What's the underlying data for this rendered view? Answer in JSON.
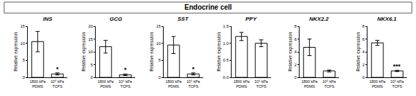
{
  "header": "Endocrine cell",
  "chart_data": [
    {
      "type": "bar",
      "title": "INS",
      "categories": [
        "1800 kPa PDMS",
        "10⁶ kPa TCPS"
      ],
      "values": [
        10.5,
        1.0
      ],
      "errors": [
        3.0,
        0.3
      ],
      "ylabel": "Relative expression",
      "ylim": [
        0,
        15
      ],
      "yticks": [
        0,
        5,
        10,
        15
      ],
      "color": "#ffffff",
      "annotations": [
        {
          "category": "10⁶ kPa TCPS",
          "text": "*"
        }
      ]
    },
    {
      "type": "bar",
      "title": "GCG",
      "categories": [
        "1800 kPa PDMS",
        "10⁶ kPa TCPS"
      ],
      "values": [
        12.0,
        1.0
      ],
      "errors": [
        2.5,
        0.3
      ],
      "ylabel": "Relative expression",
      "ylim": [
        0,
        20
      ],
      "yticks": [
        0,
        5,
        10,
        15,
        20
      ],
      "color": "#ffffff",
      "annotations": [
        {
          "category": "10⁶ kPa TCPS",
          "text": "*"
        }
      ]
    },
    {
      "type": "bar",
      "title": "SST",
      "categories": [
        "1800 kPa PDMS",
        "10⁶ kPa TCPS"
      ],
      "values": [
        9.5,
        1.0
      ],
      "errors": [
        2.5,
        0.3
      ],
      "ylabel": "Relative expression",
      "ylim": [
        0,
        15
      ],
      "yticks": [
        0,
        5,
        10,
        15
      ],
      "color": "#ffffff",
      "annotations": [
        {
          "category": "10⁶ kPa TCPS",
          "text": "*"
        }
      ]
    },
    {
      "type": "bar",
      "title": "PPY",
      "categories": [
        "1800 kPa PDMS",
        "10⁶ kPa TCPS"
      ],
      "values": [
        1.2,
        1.0
      ],
      "errors": [
        0.12,
        0.1
      ],
      "ylabel": "Relative expression",
      "ylim": [
        0,
        1.5
      ],
      "yticks": [
        {
          "value": 0,
          "label": "0.0"
        },
        {
          "value": 0.5,
          "label": "0.5"
        },
        {
          "value": 1,
          "label": "1.0"
        },
        {
          "value": 1.5,
          "label": "1.5"
        }
      ],
      "color": "#ffffff"
    },
    {
      "type": "bar",
      "title": "NKX2.2",
      "categories": [
        "1800 kPa PDMS",
        "10⁶ kPa TCPS"
      ],
      "values": [
        4.7,
        1.0
      ],
      "errors": [
        1.3,
        0.15
      ],
      "ylabel": "Relative expression",
      "ylim": [
        0,
        8
      ],
      "yticks": [
        0,
        2,
        4,
        6,
        8
      ],
      "color": "#ffffff"
    },
    {
      "type": "bar",
      "title": "NKX6.1",
      "categories": [
        "1800 kPa PDMS",
        "10⁶ kPa TCPS"
      ],
      "values": [
        5.4,
        1.0
      ],
      "errors": [
        0.4,
        0.1
      ],
      "ylabel": "Relative expression",
      "ylim": [
        0,
        8
      ],
      "yticks": [
        0,
        2,
        4,
        6,
        8
      ],
      "color": "#ffffff",
      "annotations": [
        {
          "category": "10⁶ kPa TCPS",
          "text": "***"
        }
      ]
    }
  ]
}
